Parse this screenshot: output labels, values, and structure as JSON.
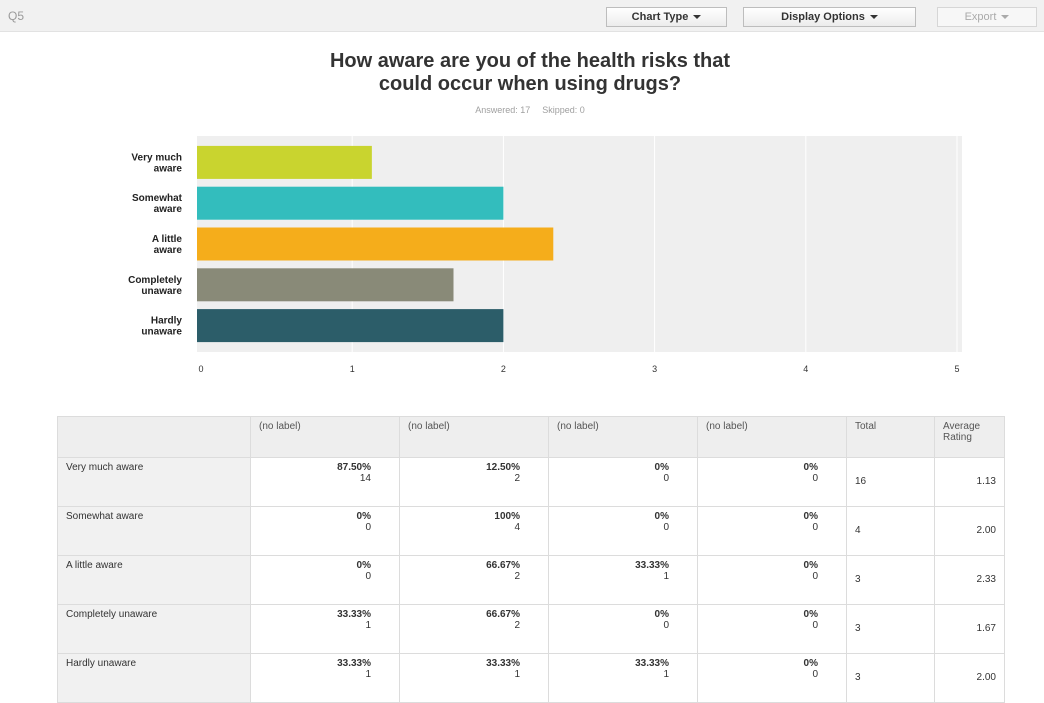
{
  "toolbar": {
    "question_label": "Q5",
    "chart_type_label": "Chart Type",
    "display_options_label": "Display Options",
    "export_label": "Export"
  },
  "question": {
    "title_line1": "How aware are you of the health risks that",
    "title_line2": "could occur when using drugs?",
    "answered": "Answered: 17",
    "skipped": "Skipped: 0"
  },
  "colors": {
    "plot_background": "#efefef",
    "gridline": "#ffffff"
  },
  "chart_data": {
    "type": "bar",
    "orientation": "horizontal",
    "categories": [
      "Very much aware",
      "Somewhat aware",
      "A little aware",
      "Completely unaware",
      "Hardly unaware"
    ],
    "category_label_lines": [
      [
        "Very much",
        "aware"
      ],
      [
        "Somewhat",
        "aware"
      ],
      [
        "A little",
        "aware"
      ],
      [
        "Completely",
        "unaware"
      ],
      [
        "Hardly",
        "unaware"
      ]
    ],
    "values": [
      1.13,
      2.0,
      2.33,
      1.67,
      2.0
    ],
    "colors": [
      "#c9d42f",
      "#33bdbd",
      "#f5ad1b",
      "#898a78",
      "#2c5d69"
    ],
    "xlim": [
      0,
      5
    ],
    "xticks": [
      "0",
      "1",
      "2",
      "3",
      "4",
      "5"
    ],
    "grid": true,
    "title": "",
    "xlabel": "",
    "ylabel": ""
  },
  "table": {
    "headers": [
      "",
      "(no label)",
      "(no label)",
      "(no label)",
      "(no label)",
      "Total",
      "Average Rating"
    ],
    "rows": [
      {
        "label": "Very much aware",
        "cells": [
          {
            "pct": "87.50%",
            "count": "14"
          },
          {
            "pct": "12.50%",
            "count": "2"
          },
          {
            "pct": "0%",
            "count": "0"
          },
          {
            "pct": "0%",
            "count": "0"
          }
        ],
        "total": "16",
        "avg": "1.13"
      },
      {
        "label": "Somewhat aware",
        "cells": [
          {
            "pct": "0%",
            "count": "0"
          },
          {
            "pct": "100%",
            "count": "4"
          },
          {
            "pct": "0%",
            "count": "0"
          },
          {
            "pct": "0%",
            "count": "0"
          }
        ],
        "total": "4",
        "avg": "2.00"
      },
      {
        "label": "A little aware",
        "cells": [
          {
            "pct": "0%",
            "count": "0"
          },
          {
            "pct": "66.67%",
            "count": "2"
          },
          {
            "pct": "33.33%",
            "count": "1"
          },
          {
            "pct": "0%",
            "count": "0"
          }
        ],
        "total": "3",
        "avg": "2.33"
      },
      {
        "label": "Completely unaware",
        "cells": [
          {
            "pct": "33.33%",
            "count": "1"
          },
          {
            "pct": "66.67%",
            "count": "2"
          },
          {
            "pct": "0%",
            "count": "0"
          },
          {
            "pct": "0%",
            "count": "0"
          }
        ],
        "total": "3",
        "avg": "1.67"
      },
      {
        "label": "Hardly unaware",
        "cells": [
          {
            "pct": "33.33%",
            "count": "1"
          },
          {
            "pct": "33.33%",
            "count": "1"
          },
          {
            "pct": "33.33%",
            "count": "1"
          },
          {
            "pct": "0%",
            "count": "0"
          }
        ],
        "total": "3",
        "avg": "2.00"
      }
    ]
  }
}
